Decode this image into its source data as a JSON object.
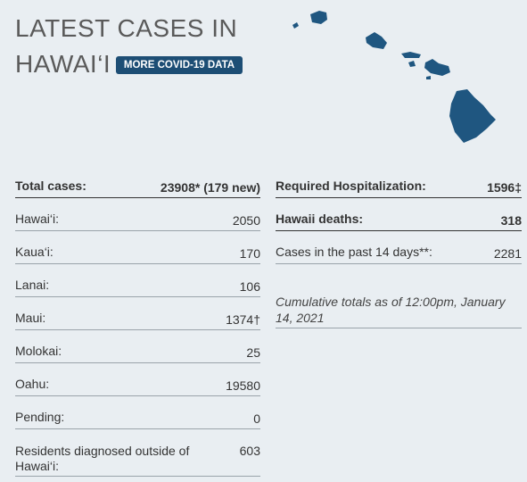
{
  "header": {
    "title_line1": "LATEST CASES IN",
    "title_line2": "HAWAI‘I",
    "button": "MORE COVID-19 DATA"
  },
  "left_table": {
    "rows": [
      [
        "Total cases:",
        "23908* (179 new)"
      ],
      [
        "Hawai‘i:",
        "2050"
      ],
      [
        "Kaua‘i:",
        "170"
      ],
      [
        "Lanai:",
        "106"
      ],
      [
        "Maui:",
        "1374†"
      ],
      [
        "Molokai:",
        "25"
      ],
      [
        "Oahu:",
        "19580"
      ],
      [
        "Pending:",
        "0"
      ],
      [
        "Residents diagnosed outside of Hawai‘i:",
        "603"
      ]
    ]
  },
  "right_table": {
    "rows": [
      [
        "Required Hospitalization:",
        "1596‡"
      ],
      [
        "Hawaii deaths:",
        "318"
      ],
      [
        "Cases in the past 14 days**:",
        "2281"
      ]
    ],
    "note": "Cumulative totals as of 12:00pm, January 14, 2021"
  }
}
